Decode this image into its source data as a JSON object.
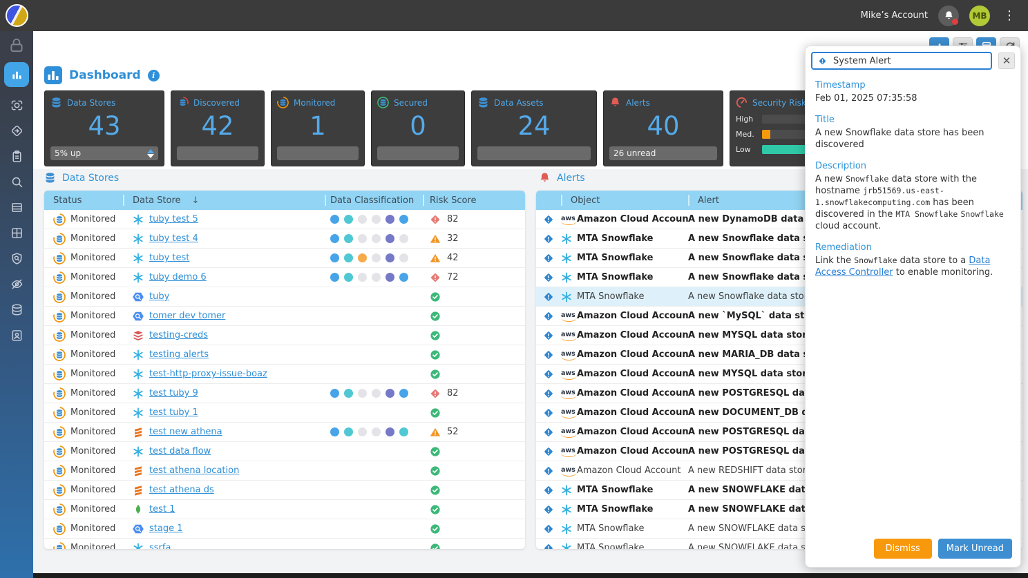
{
  "topbar": {
    "account_label": "Mike’s Account",
    "avatar_initials": "MB"
  },
  "colors": {
    "accent_blue": "#3d8fd1",
    "table_header_blue": "#92d4f3",
    "link_blue": "#2e8fd6",
    "risk_high_red": "#e05c54",
    "risk_med_orange": "#f49422",
    "risk_ok_green": "#3cb878",
    "dismiss_orange": "#f8990d",
    "selected_row_bg": "#def1fb"
  },
  "sidebar": {
    "lock_icon": "lock-icon",
    "items": [
      {
        "icon": "dashboard-chart-icon",
        "active": true
      },
      {
        "icon": "scanner-icon"
      },
      {
        "icon": "policy-diamond-icon"
      },
      {
        "icon": "clipboard-icon"
      },
      {
        "icon": "search-icon"
      },
      {
        "icon": "table-rows-icon"
      },
      {
        "icon": "apps-grid-icon"
      },
      {
        "icon": "shield-scan-icon"
      },
      {
        "icon": "eye-off-icon"
      },
      {
        "icon": "data-stores-icon"
      },
      {
        "icon": "contact-badge-icon"
      }
    ]
  },
  "toolbar": {
    "buttons": [
      {
        "icon": "bar-chart-icon",
        "blue": true
      },
      {
        "icon": "sliders-icon"
      },
      {
        "icon": "panel-grid-icon",
        "blue": true
      },
      {
        "icon": "refresh-icon"
      }
    ]
  },
  "header": {
    "title": "Dashboard"
  },
  "summary_cards": [
    {
      "label": "Data Stores",
      "value": "43",
      "footer": "5% up",
      "icon": "database-blue-icon",
      "sorter": true
    },
    {
      "label": "Discovered",
      "value": "42",
      "footer": "",
      "icon": "database-discovered-icon"
    },
    {
      "label": "Monitored",
      "value": "1",
      "footer": "",
      "icon": "database-monitored-icon"
    },
    {
      "label": "Secured",
      "value": "0",
      "footer": "",
      "icon": "database-secured-icon"
    },
    {
      "label": "Data Assets",
      "value": "24",
      "footer": "",
      "icon": "database-blue-icon"
    },
    {
      "label": "Alerts",
      "value": "40",
      "footer": "26 unread",
      "icon": "alert-bell-icon"
    }
  ],
  "risk_card": {
    "label": "Security Risk Score",
    "icon": "risk-gauge-icon",
    "bars": [
      {
        "label": "High",
        "fill": 0,
        "color": "#f05c5c"
      },
      {
        "label": "Med.",
        "fill": 9,
        "color": "#f59a0c"
      },
      {
        "label": "Low",
        "fill": 86,
        "color": "#2fc9a7"
      }
    ]
  },
  "data_stores": {
    "section_title": "Data Stores",
    "columns": {
      "status": "Status",
      "name": "Data Store",
      "classification": "Data Classification",
      "risk": "Risk Score"
    },
    "sort_arrow": "↓",
    "status_label": "Monitored",
    "rows": [
      {
        "status": "Monitored",
        "name": "tuby test 5",
        "icon": "snowflake",
        "dots": [
          "blue",
          "teal",
          "gray",
          "gray",
          "purple",
          "blue"
        ],
        "risk": {
          "kind": "high",
          "value": "82"
        }
      },
      {
        "status": "Monitored",
        "name": "tuby test 4",
        "icon": "snowflake",
        "dots": [
          "blue",
          "teal",
          "gray",
          "gray",
          "purple",
          "gray"
        ],
        "risk": {
          "kind": "med",
          "value": "32"
        }
      },
      {
        "status": "Monitored",
        "name": "tuby test",
        "icon": "snowflake",
        "dots": [
          "blue",
          "teal",
          "orange",
          "gray",
          "purple",
          "gray"
        ],
        "risk": {
          "kind": "med",
          "value": "42"
        }
      },
      {
        "status": "Monitored",
        "name": "tuby demo 6",
        "icon": "snowflake",
        "dots": [
          "blue",
          "teal",
          "gray",
          "gray",
          "purple",
          "blue"
        ],
        "risk": {
          "kind": "high",
          "value": "72"
        }
      },
      {
        "status": "Monitored",
        "name": "tuby",
        "icon": "bigquery",
        "dots": [],
        "risk": {
          "kind": "ok",
          "value": ""
        }
      },
      {
        "status": "Monitored",
        "name": "tomer dev tomer",
        "icon": "bigquery",
        "dots": [],
        "risk": {
          "kind": "ok",
          "value": ""
        }
      },
      {
        "status": "Monitored",
        "name": "testing-creds",
        "icon": "redis",
        "dots": [],
        "risk": {
          "kind": "ok",
          "value": ""
        }
      },
      {
        "status": "Monitored",
        "name": "testing alerts",
        "icon": "snowflake",
        "dots": [],
        "risk": {
          "kind": "ok",
          "value": ""
        }
      },
      {
        "status": "Monitored",
        "name": "test-http-proxy-issue-boaz",
        "icon": "snowflake",
        "dots": [],
        "risk": {
          "kind": "ok",
          "value": ""
        }
      },
      {
        "status": "Monitored",
        "name": "test tuby 9",
        "icon": "snowflake",
        "dots": [
          "blue",
          "teal",
          "gray",
          "gray",
          "purple",
          "blue"
        ],
        "risk": {
          "kind": "high",
          "value": "82"
        }
      },
      {
        "status": "Monitored",
        "name": "test tuby 1",
        "icon": "snowflake",
        "dots": [],
        "risk": {
          "kind": "ok",
          "value": ""
        }
      },
      {
        "status": "Monitored",
        "name": "test new athena",
        "icon": "athena",
        "dots": [
          "blue",
          "teal",
          "gray",
          "gray",
          "purple",
          "teal"
        ],
        "risk": {
          "kind": "med",
          "value": "52"
        }
      },
      {
        "status": "Monitored",
        "name": "test data flow",
        "icon": "snowflake",
        "dots": [],
        "risk": {
          "kind": "ok",
          "value": ""
        }
      },
      {
        "status": "Monitored",
        "name": "test athena location",
        "icon": "athena",
        "dots": [],
        "risk": {
          "kind": "ok",
          "value": ""
        }
      },
      {
        "status": "Monitored",
        "name": "test athena ds",
        "icon": "athena",
        "dots": [],
        "risk": {
          "kind": "ok",
          "value": ""
        }
      },
      {
        "status": "Monitored",
        "name": "test 1",
        "icon": "mongodb",
        "dots": [],
        "risk": {
          "kind": "ok",
          "value": ""
        }
      },
      {
        "status": "Monitored",
        "name": "stage 1",
        "icon": "bigquery",
        "dots": [],
        "risk": {
          "kind": "ok",
          "value": ""
        }
      },
      {
        "status": "Monitored",
        "name": "ssrfa",
        "icon": "snowflake",
        "dots": [],
        "risk": {
          "kind": "ok",
          "value": ""
        }
      }
    ]
  },
  "alerts": {
    "section_title": "Alerts",
    "columns": {
      "object": "Object",
      "alert": "Alert"
    },
    "rows": [
      {
        "object_icon": "aws",
        "object": "Amazon Cloud Account",
        "alert": "A new DynamoDB data stor",
        "unread": true
      },
      {
        "object_icon": "snowflake",
        "object": "MTA Snowflake",
        "alert": "A new Snowflake data stor",
        "unread": true
      },
      {
        "object_icon": "snowflake",
        "object": "MTA Snowflake",
        "alert": "A new Snowflake data stor",
        "unread": true
      },
      {
        "object_icon": "snowflake",
        "object": "MTA Snowflake",
        "alert": "A new Snowflake data stor",
        "unread": true
      },
      {
        "object_icon": "snowflake",
        "object": "MTA Snowflake",
        "alert": "A new Snowflake data store ha",
        "selected": true
      },
      {
        "object_icon": "aws",
        "object": "Amazon Cloud Account",
        "alert": "A new `MySQL` data store",
        "unread": true
      },
      {
        "object_icon": "aws",
        "object": "Amazon Cloud Account",
        "alert": "A new MYSQL data store ha",
        "unread": true
      },
      {
        "object_icon": "aws",
        "object": "Amazon Cloud Account",
        "alert": "A new MARIA_DB data stor",
        "unread": true
      },
      {
        "object_icon": "aws",
        "object": "Amazon Cloud Account",
        "alert": "A new MYSQL data store ha",
        "unread": true
      },
      {
        "object_icon": "aws",
        "object": "Amazon Cloud Account",
        "alert": "A new POSTGRESQL data st",
        "unread": true
      },
      {
        "object_icon": "aws",
        "object": "Amazon Cloud Account",
        "alert": "A new DOCUMENT_DB data",
        "unread": true
      },
      {
        "object_icon": "aws",
        "object": "Amazon Cloud Account",
        "alert": "A new POSTGRESQL data st",
        "unread": true
      },
      {
        "object_icon": "aws",
        "object": "Amazon Cloud Account",
        "alert": "A new POSTGRESQL data st",
        "unread": true
      },
      {
        "object_icon": "aws",
        "object": "Amazon Cloud Account",
        "alert": "A new REDSHIFT data store ha"
      },
      {
        "object_icon": "snowflake",
        "object": "MTA Snowflake",
        "alert": "A new SNOWFLAKE data st",
        "unread": true
      },
      {
        "object_icon": "snowflake",
        "object": "MTA Snowflake",
        "alert": "A new SNOWFLAKE data st",
        "unread": true
      },
      {
        "object_icon": "snowflake",
        "object": "MTA Snowflake",
        "alert": "A new SNOWFLAKE data store"
      },
      {
        "object_icon": "snowflake",
        "object": "MTA Snowflake",
        "alert": "A new SNOWFLAKE data store"
      }
    ]
  },
  "alert_panel": {
    "title_label": "System Alert",
    "timestamp_label": "Timestamp",
    "timestamp_value": "Feb 01, 2025 07:35:58",
    "title_section_label": "Title",
    "title_value": "A new Snowflake data store has been discovered",
    "description_label": "Description",
    "description_segments": [
      {
        "t": "A new "
      },
      {
        "t": "Snowflake",
        "mono": true
      },
      {
        "t": " data store with the hostname "
      },
      {
        "t": "jrb51569.us-east-1.snowflakecomputing.com",
        "mono": true
      },
      {
        "t": " has been discovered in the "
      },
      {
        "t": "MTA Snowflake",
        "mono": true
      },
      {
        "t": " "
      },
      {
        "t": "Snowflake",
        "mono": true
      },
      {
        "t": " cloud account."
      }
    ],
    "remediation_label": "Remediation",
    "remediation_segments": [
      {
        "t": "Link the "
      },
      {
        "t": "Snowflake",
        "mono": true
      },
      {
        "t": " data store to a "
      },
      {
        "t": "Data Access Controller",
        "link": true
      },
      {
        "t": " to enable monitoring."
      }
    ],
    "dismiss_label": "Dismiss",
    "mark_unread_label": "Mark Unread"
  }
}
